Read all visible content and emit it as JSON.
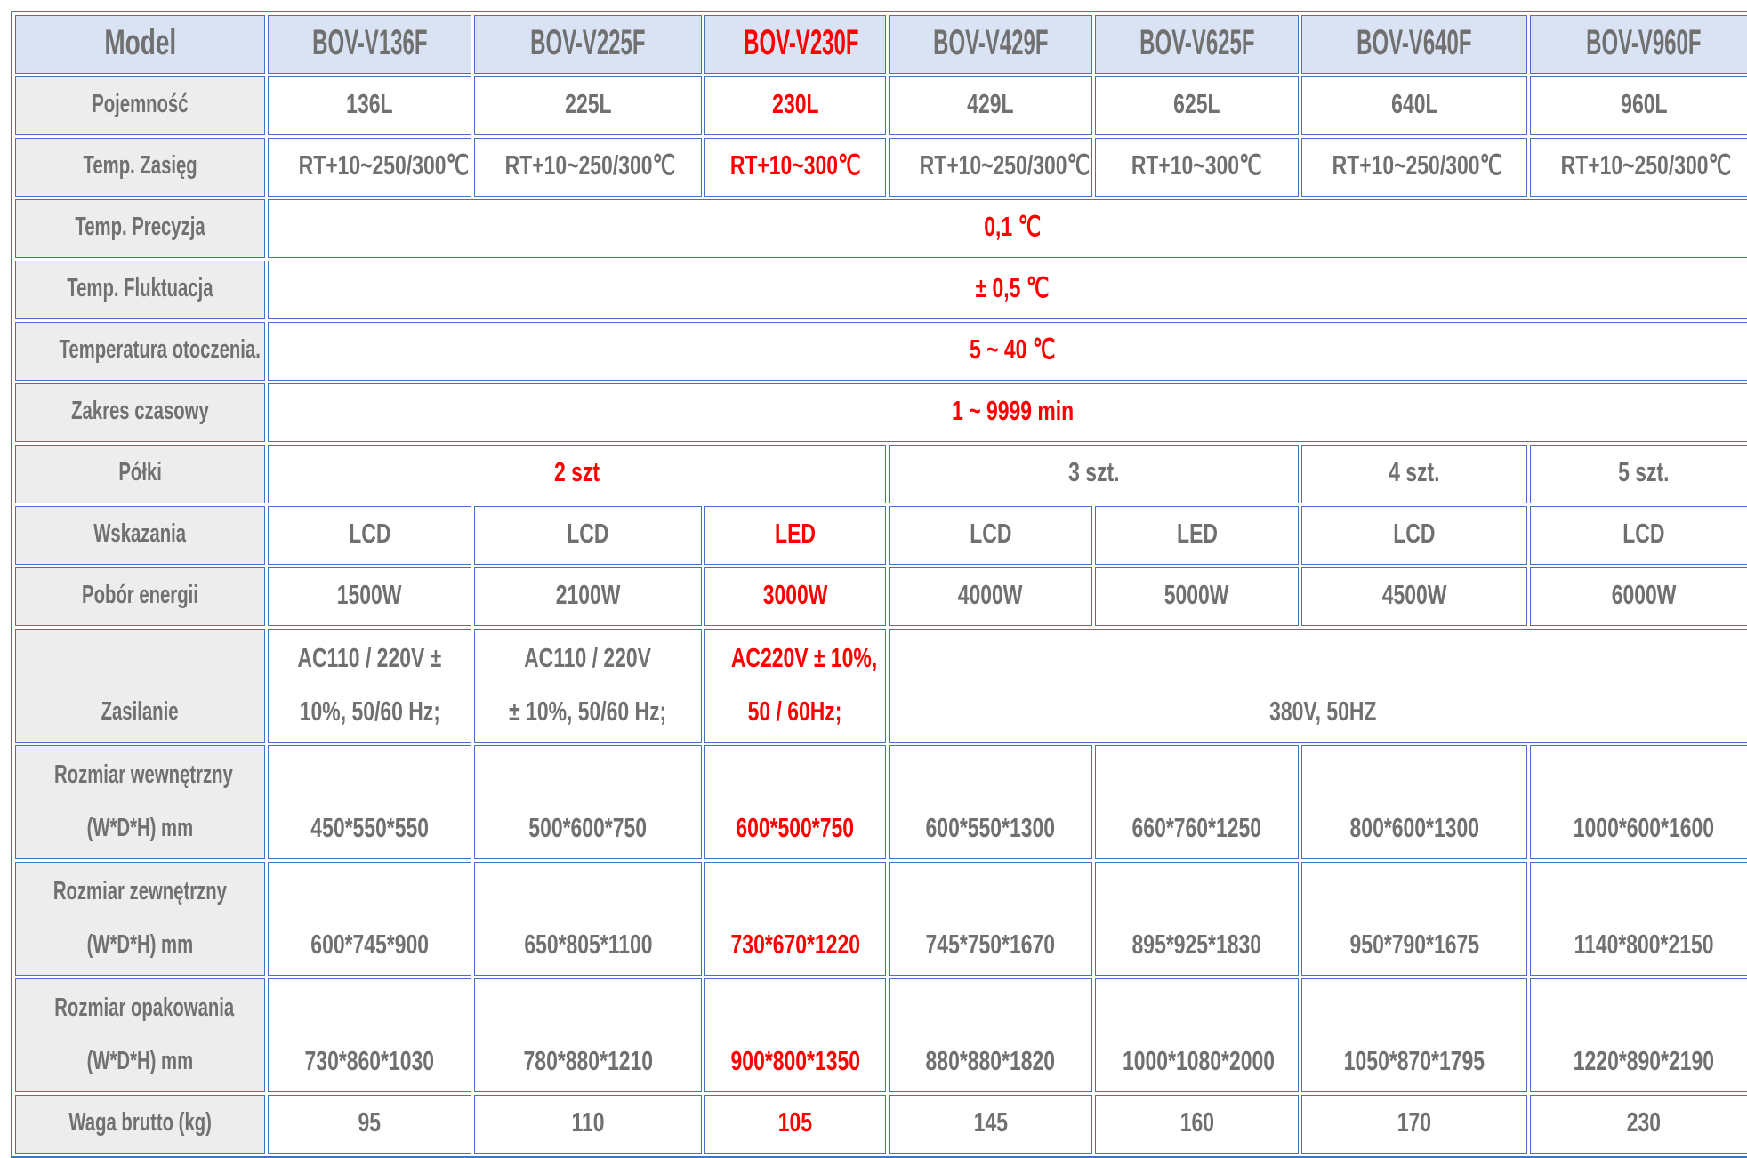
{
  "colors": {
    "text": "#707070",
    "highlight": "#ff0000",
    "border": "#4472c4",
    "header_bg": "#dae3f3",
    "label_bg": "#ededed"
  },
  "header": {
    "label": "Model",
    "models": [
      "BOV-V136F",
      "BOV-V225F",
      "BOV-V230F",
      "BOV-V429F",
      "BOV-V625F",
      "BOV-V640F",
      "BOV-V960F"
    ],
    "highlight_index": 2
  },
  "rows": [
    {
      "label": [
        "Pojemność"
      ],
      "cells": [
        {
          "t": [
            "136L"
          ]
        },
        {
          "t": [
            "225L"
          ]
        },
        {
          "t": [
            "230L"
          ],
          "red": true
        },
        {
          "t": [
            "429L"
          ]
        },
        {
          "t": [
            "625L"
          ]
        },
        {
          "t": [
            "640L"
          ]
        },
        {
          "t": [
            "960L"
          ]
        }
      ]
    },
    {
      "label": [
        "Temp. Zasięg"
      ],
      "cells": [
        {
          "t": [
            "RT+10~250/300℃"
          ]
        },
        {
          "t": [
            "RT+10~250/300℃"
          ]
        },
        {
          "t": [
            "RT+10~300℃"
          ],
          "red": true
        },
        {
          "t": [
            "RT+10~250/300℃"
          ]
        },
        {
          "t": [
            "RT+10~300℃"
          ]
        },
        {
          "t": [
            "RT+10~250/300℃"
          ]
        },
        {
          "t": [
            "RT+10~250/300℃"
          ]
        }
      ]
    },
    {
      "label": [
        "Temp. Precyzja"
      ],
      "cells": [
        {
          "t": [
            "0,1 ℃"
          ],
          "span": 7,
          "red": true
        }
      ]
    },
    {
      "label": [
        "Temp. Fluktuacja"
      ],
      "cells": [
        {
          "t": [
            "± 0,5 ℃"
          ],
          "span": 7,
          "red": true
        }
      ]
    },
    {
      "label": [
        "Temperatura otoczenia."
      ],
      "cells": [
        {
          "t": [
            "5 ~ 40 ℃"
          ],
          "span": 7,
          "red": true
        }
      ]
    },
    {
      "label": [
        "Zakres czasowy"
      ],
      "cells": [
        {
          "t": [
            "1 ~ 9999 min"
          ],
          "span": 7,
          "red": true
        }
      ]
    },
    {
      "label": [
        "Półki"
      ],
      "cells": [
        {
          "t": [
            "2 szt"
          ],
          "span": 3,
          "red": true
        },
        {
          "t": [
            "3 szt."
          ],
          "span": 2
        },
        {
          "t": [
            "4 szt."
          ]
        },
        {
          "t": [
            "5 szt."
          ]
        }
      ]
    },
    {
      "label": [
        "Wskazania"
      ],
      "cells": [
        {
          "t": [
            "LCD"
          ]
        },
        {
          "t": [
            "LCD"
          ]
        },
        {
          "t": [
            "LED"
          ],
          "red": true
        },
        {
          "t": [
            "LCD"
          ]
        },
        {
          "t": [
            "LED"
          ]
        },
        {
          "t": [
            "LCD"
          ]
        },
        {
          "t": [
            "LCD"
          ]
        }
      ]
    },
    {
      "label": [
        "Pobór energii"
      ],
      "cells": [
        {
          "t": [
            "1500W"
          ]
        },
        {
          "t": [
            "2100W"
          ]
        },
        {
          "t": [
            "3000W"
          ],
          "red": true
        },
        {
          "t": [
            "4000W"
          ]
        },
        {
          "t": [
            "5000W"
          ]
        },
        {
          "t": [
            "4500W"
          ]
        },
        {
          "t": [
            "6000W"
          ]
        }
      ]
    },
    {
      "label": [
        "Zasilanie"
      ],
      "tall": true,
      "cells": [
        {
          "t": [
            "AC110 / 220V ±",
            "10%, 50/60 Hz;"
          ]
        },
        {
          "t": [
            "AC110 / 220V",
            "± 10%, 50/60 Hz;"
          ]
        },
        {
          "t": [
            "AC220V ± 10%,",
            "50 / 60Hz;"
          ],
          "red": true
        },
        {
          "t": [
            "380V, 50HZ"
          ],
          "span": 4
        }
      ]
    },
    {
      "label": [
        "Rozmiar wewnętrzny",
        "(W*D*H) mm"
      ],
      "tall": true,
      "cells": [
        {
          "t": [
            "450*550*550"
          ]
        },
        {
          "t": [
            "500*600*750"
          ]
        },
        {
          "t": [
            "600*500*750"
          ],
          "red": true
        },
        {
          "t": [
            "600*550*1300"
          ]
        },
        {
          "t": [
            "660*760*1250"
          ]
        },
        {
          "t": [
            "800*600*1300"
          ]
        },
        {
          "t": [
            "1000*600*1600"
          ]
        }
      ]
    },
    {
      "label": [
        "Rozmiar zewnętrzny",
        "(W*D*H) mm"
      ],
      "tall": true,
      "cells": [
        {
          "t": [
            "600*745*900"
          ]
        },
        {
          "t": [
            "650*805*1100"
          ]
        },
        {
          "t": [
            "730*670*1220"
          ],
          "red": true
        },
        {
          "t": [
            "745*750*1670"
          ]
        },
        {
          "t": [
            "895*925*1830"
          ]
        },
        {
          "t": [
            "950*790*1675"
          ]
        },
        {
          "t": [
            "1140*800*2150"
          ]
        }
      ]
    },
    {
      "label": [
        "Rozmiar opakowania",
        "(W*D*H) mm"
      ],
      "tall": true,
      "cells": [
        {
          "t": [
            "730*860*1030"
          ]
        },
        {
          "t": [
            "780*880*1210"
          ]
        },
        {
          "t": [
            "900*800*1350"
          ],
          "red": true
        },
        {
          "t": [
            "880*880*1820"
          ]
        },
        {
          "t": [
            "1000*1080*2000"
          ]
        },
        {
          "t": [
            "1050*870*1795"
          ]
        },
        {
          "t": [
            "1220*890*2190"
          ]
        }
      ]
    },
    {
      "label": [
        "Waga brutto (kg)"
      ],
      "cells": [
        {
          "t": [
            "95"
          ]
        },
        {
          "t": [
            "110"
          ]
        },
        {
          "t": [
            "105"
          ],
          "red": true
        },
        {
          "t": [
            "145"
          ]
        },
        {
          "t": [
            "160"
          ]
        },
        {
          "t": [
            "170"
          ]
        },
        {
          "t": [
            "230"
          ]
        }
      ]
    }
  ]
}
